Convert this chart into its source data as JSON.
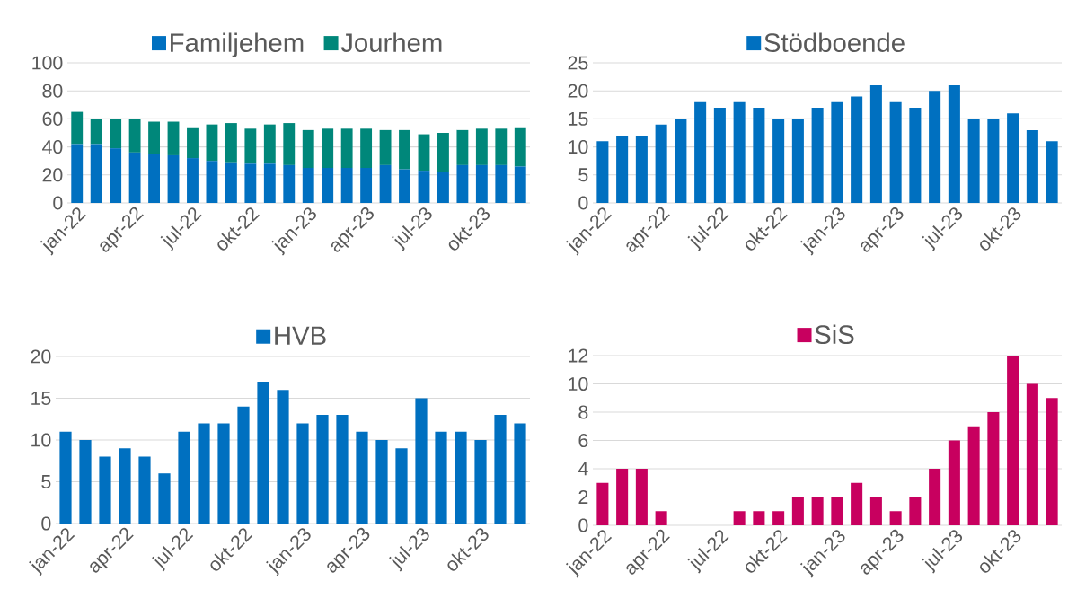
{
  "chart_data": [
    {
      "type": "bar",
      "stacked": true,
      "categories": [
        "jan-22",
        null,
        null,
        "apr-22",
        null,
        null,
        "jul-22",
        null,
        null,
        "okt-22",
        null,
        null,
        "jan-23",
        null,
        null,
        "apr-23",
        null,
        null,
        "jul-23",
        null,
        null,
        "okt-23",
        null,
        null
      ],
      "series": [
        {
          "name": "Familjehem",
          "color": "#0070c0",
          "values": [
            42,
            42,
            39,
            36,
            35,
            34,
            32,
            30,
            29,
            28,
            28,
            27,
            25,
            25,
            25,
            25,
            27,
            24,
            23,
            22,
            27,
            27,
            27,
            26
          ]
        },
        {
          "name": "Jourhem",
          "color": "#00877a",
          "values": [
            23,
            18,
            21,
            24,
            23,
            24,
            22,
            26,
            28,
            25,
            28,
            30,
            27,
            28,
            28,
            28,
            25,
            28,
            26,
            28,
            25,
            26,
            26,
            28
          ]
        }
      ],
      "ylim": [
        0,
        100
      ],
      "yticks": [
        0,
        20,
        40,
        60,
        80,
        100
      ],
      "grid": "y",
      "legend": "top"
    },
    {
      "type": "bar",
      "categories": [
        "jan-22",
        null,
        null,
        "apr-22",
        null,
        null,
        "jul-22",
        null,
        null,
        "okt-22",
        null,
        null,
        "jan-23",
        null,
        null,
        "apr-23",
        null,
        null,
        "jul-23",
        null,
        null,
        "okt-23",
        null,
        null
      ],
      "series": [
        {
          "name": "Stödboende",
          "color": "#0070c0",
          "values": [
            11,
            12,
            12,
            14,
            15,
            18,
            17,
            18,
            17,
            15,
            15,
            17,
            18,
            19,
            21,
            18,
            17,
            20,
            21,
            15,
            15,
            16,
            13,
            11
          ]
        }
      ],
      "ylim": [
        0,
        25
      ],
      "yticks": [
        0,
        5,
        10,
        15,
        20,
        25
      ],
      "grid": "y",
      "legend": "top"
    },
    {
      "type": "bar",
      "categories": [
        "jan-22",
        null,
        null,
        "apr-22",
        null,
        null,
        "jul-22",
        null,
        null,
        "okt-22",
        null,
        null,
        "jan-23",
        null,
        null,
        "apr-23",
        null,
        null,
        "jul-23",
        null,
        null,
        "okt-23",
        null,
        null
      ],
      "series": [
        {
          "name": "HVB",
          "color": "#0070c0",
          "values": [
            11,
            10,
            8,
            9,
            8,
            6,
            11,
            12,
            12,
            14,
            17,
            16,
            12,
            13,
            13,
            11,
            10,
            9,
            15,
            11,
            11,
            10,
            13,
            12
          ]
        }
      ],
      "ylim": [
        0,
        20
      ],
      "yticks": [
        0,
        5,
        10,
        15,
        20
      ],
      "grid": "y",
      "legend": "top"
    },
    {
      "type": "bar",
      "categories": [
        "jan-22",
        null,
        null,
        "apr-22",
        null,
        null,
        "jul-22",
        null,
        null,
        "okt-22",
        null,
        null,
        "jan-23",
        null,
        null,
        "apr-23",
        null,
        null,
        "jul-23",
        null,
        null,
        "okt-23",
        null,
        null
      ],
      "series": [
        {
          "name": "SiS",
          "color": "#c8005f",
          "values": [
            3,
            4,
            4,
            1,
            0,
            0,
            0,
            1,
            1,
            1,
            2,
            2,
            2,
            3,
            2,
            1,
            2,
            4,
            6,
            7,
            8,
            12,
            10,
            9
          ]
        }
      ],
      "ylim": [
        0,
        12
      ],
      "yticks": [
        0,
        2,
        4,
        6,
        8,
        10,
        12
      ],
      "grid": "y",
      "legend": "top"
    }
  ]
}
